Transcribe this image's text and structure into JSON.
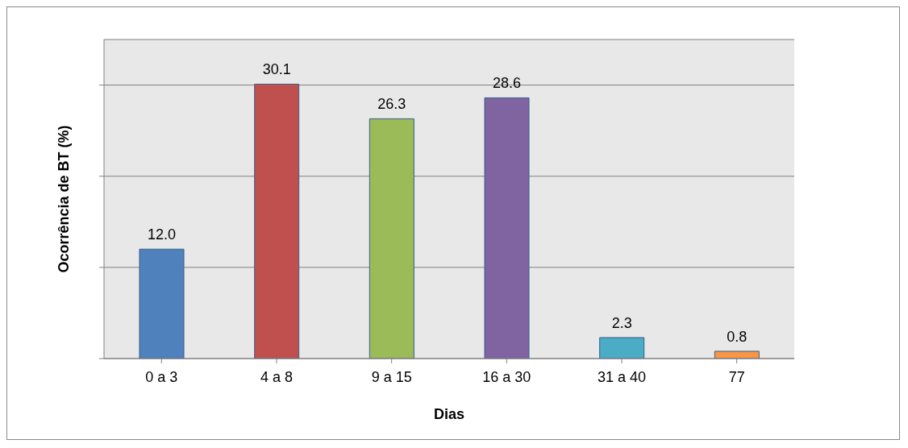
{
  "chart_data": {
    "type": "bar",
    "xlabel": "Dias",
    "ylabel": "Ocorrência de BT (%)",
    "categories": [
      "0 a 3",
      "4 a 8",
      "9 a 15",
      "16 a 30",
      "31 a 40",
      "77"
    ],
    "values": [
      12,
      30.1,
      26.3,
      28.6,
      2.3,
      0.8
    ],
    "value_labels": [
      "12.0",
      "30.1",
      "26.3",
      "28.6",
      "2.3",
      "0.8"
    ],
    "colors": [
      "#4f81bd",
      "#c0504d",
      "#9bbb59",
      "#8064a2",
      "#4bacc6",
      "#f79646"
    ],
    "ylim": [
      0,
      35
    ],
    "yticks": [
      {
        "value": 0,
        "label": null
      },
      {
        "value": 10,
        "label": null
      },
      {
        "value": 20,
        "label": null
      },
      {
        "value": 30,
        "label": null
      }
    ],
    "tick_labels": "x",
    "grid": "y"
  }
}
